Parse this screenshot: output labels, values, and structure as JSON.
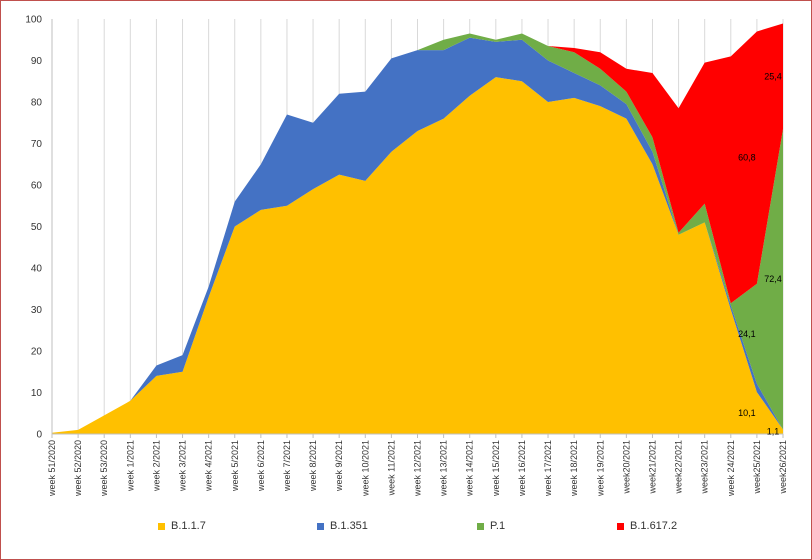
{
  "chart_data": {
    "type": "area",
    "stacked": true,
    "title": "",
    "xlabel": "",
    "ylabel": "",
    "ylim": [
      0,
      100
    ],
    "yticks": [
      0,
      10,
      20,
      30,
      40,
      50,
      60,
      70,
      80,
      90,
      100
    ],
    "grid": true,
    "legend_position": "bottom",
    "categories": [
      "week 51/2020",
      "week 52/2020",
      "week 53/2020",
      "week 1/2021",
      "week 2/2021",
      "week 3/2021",
      "week 4/2021",
      "week 5/2021",
      "week 6/2021",
      "week 7/2021",
      "week 8/2021",
      "week 9/2021",
      "week 10/2021",
      "week 11/2021",
      "week 12/2021",
      "week 13/2021",
      "week 14/2021",
      "week 15/2021",
      "week 16/2021",
      "week 17/2021",
      "week 18/2021",
      "week 19/2021",
      "week20/2021",
      "week21/2021",
      "week22/2021",
      "week23/2021",
      "week 24/2021",
      "week25/2021",
      "week26/2021"
    ],
    "series": [
      {
        "name": "B.1.1.7",
        "color": "#ffc000",
        "values": [
          0.3,
          1,
          4.5,
          8,
          14,
          15,
          33,
          50,
          54,
          55,
          59,
          62.5,
          61,
          68,
          73,
          76,
          81.5,
          86,
          85,
          80,
          81,
          79,
          76,
          65,
          48,
          51,
          30,
          10.1,
          1.1
        ]
      },
      {
        "name": "B.1.351",
        "color": "#4472c4",
        "values": [
          0,
          0,
          0,
          0,
          2.5,
          4,
          2.5,
          6,
          11,
          22,
          16,
          19.5,
          21.5,
          22.5,
          19.5,
          16.5,
          14,
          8.5,
          10,
          10,
          6,
          5,
          3.5,
          3,
          0,
          0,
          1,
          2,
          0
        ]
      },
      {
        "name": "P.1",
        "color": "#70ad47",
        "values": [
          0,
          0,
          0,
          0,
          0,
          0,
          0,
          0,
          0,
          0,
          0,
          0,
          0,
          0,
          0,
          2.5,
          1,
          0.5,
          1.5,
          3.5,
          5,
          4,
          3,
          3.5,
          0.5,
          4.5,
          0.5,
          24.1,
          72.4
        ]
      },
      {
        "name": "B.1.617.2",
        "color": "#ff0000",
        "values": [
          0,
          0,
          0,
          0,
          0,
          0,
          0,
          0,
          0,
          0,
          0,
          0,
          0,
          0,
          0,
          0,
          0,
          0,
          0,
          0,
          1,
          4,
          5.5,
          15.5,
          30,
          34,
          59.5,
          60.8,
          25.4
        ]
      }
    ],
    "data_labels": [
      {
        "series": "B.1.1.7",
        "category": "week25/2021",
        "text": "10,1"
      },
      {
        "series": "B.1.1.7",
        "category": "week26/2021",
        "text": "1,1"
      },
      {
        "series": "P.1",
        "category": "week25/2021",
        "text": "24,1"
      },
      {
        "series": "P.1",
        "category": "week26/2021",
        "text": "72,4"
      },
      {
        "series": "B.1.617.2",
        "category": "week25/2021",
        "text": "60,8"
      },
      {
        "series": "B.1.617.2",
        "category": "week26/2021",
        "text": "25,4"
      }
    ]
  }
}
